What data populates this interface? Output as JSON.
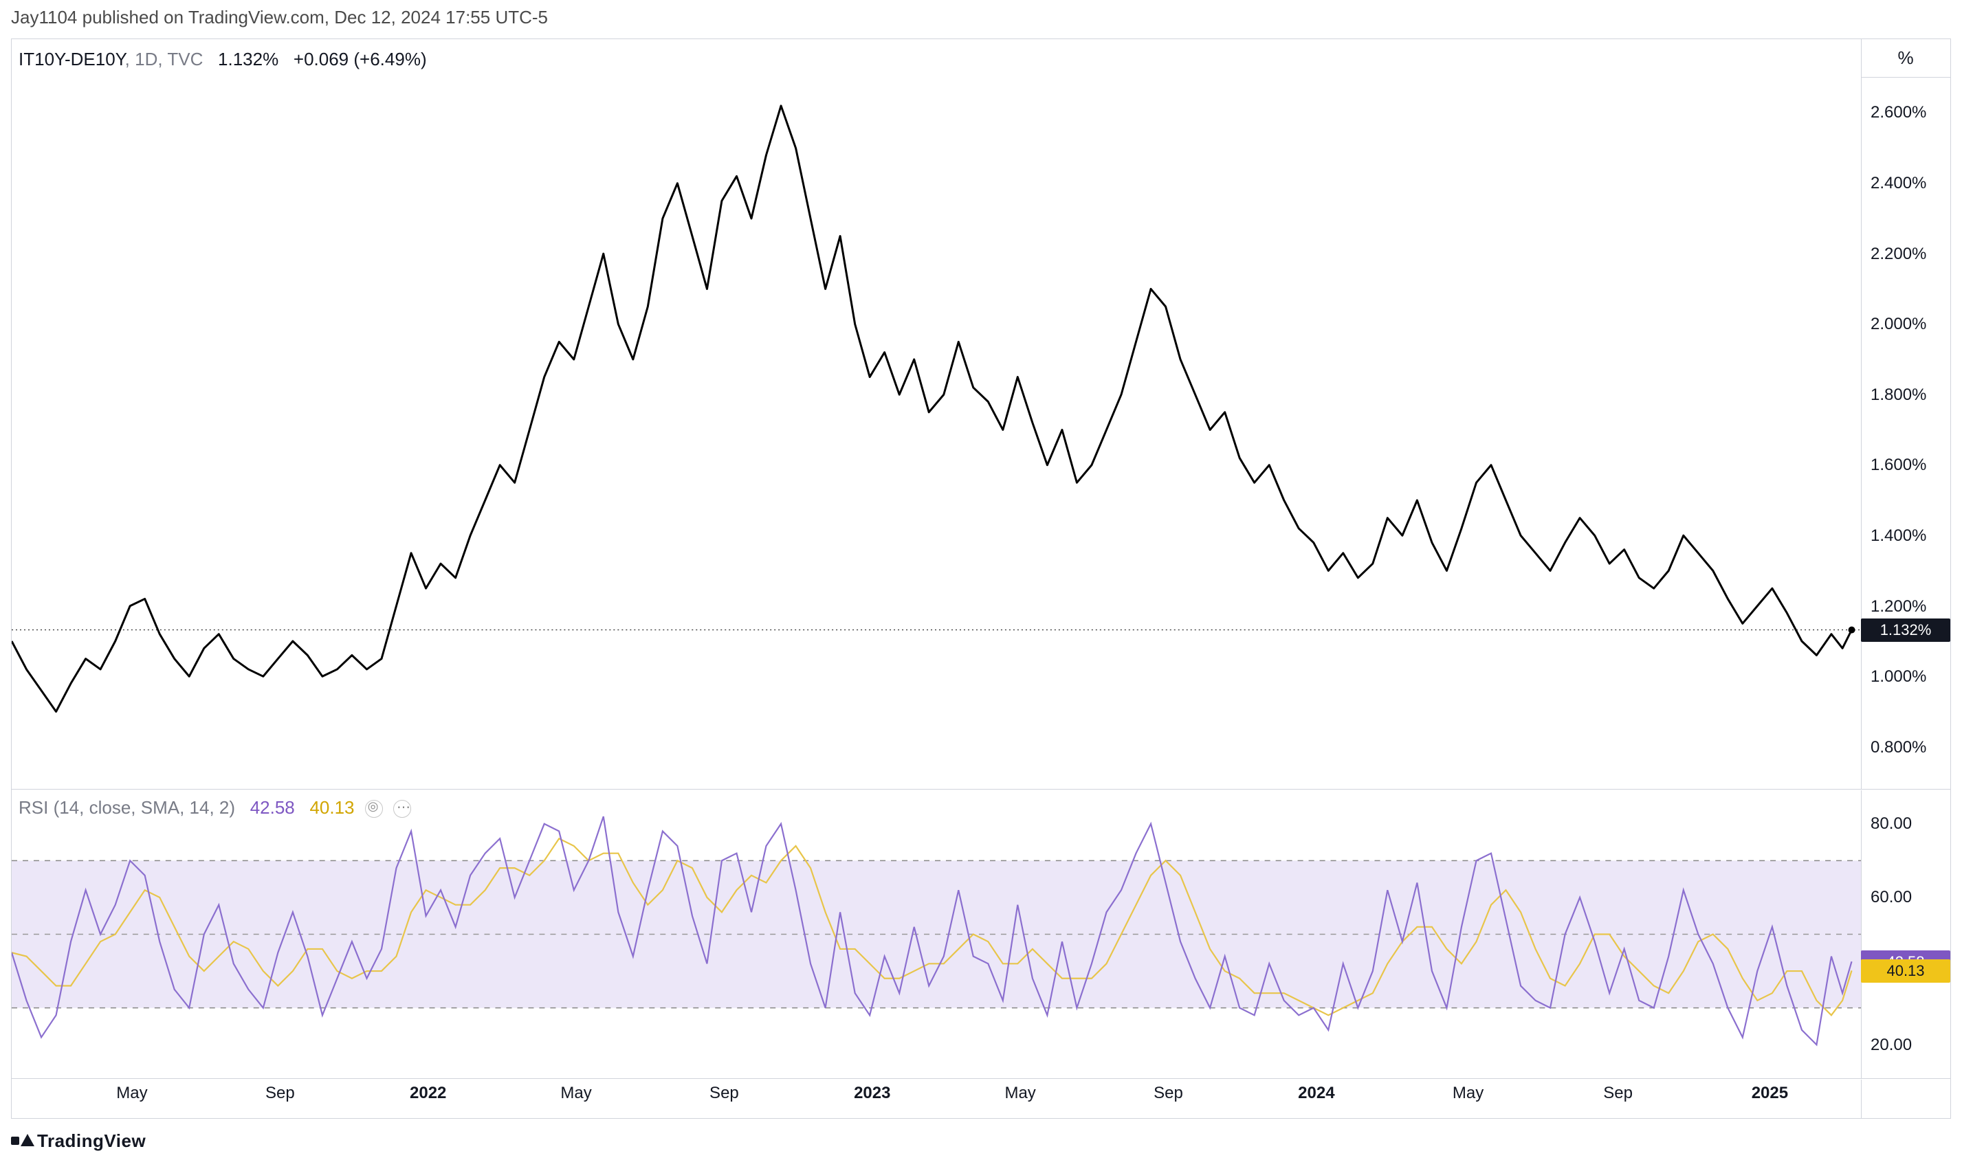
{
  "meta": {
    "publisher": "Jay1104",
    "published_text": "published on TradingView.com,",
    "timestamp": "Dec 12, 2024 17:55 UTC-5",
    "footer_brand": "TradingView"
  },
  "main": {
    "symbol": "IT10Y-DE10Y",
    "interval": "1D",
    "source": "TVC",
    "last": "1.132%",
    "change": "+0.069",
    "change_pct": "(+6.49%)",
    "unit": "%",
    "yaxis": {
      "min": 0.7,
      "max": 2.7,
      "ticks": [
        0.8,
        1.0,
        1.2,
        1.4,
        1.6,
        1.8,
        2.0,
        2.2,
        2.4,
        2.6
      ],
      "tick_labels": [
        "0.800%",
        "1.000%",
        "1.200%",
        "1.400%",
        "1.600%",
        "1.800%",
        "2.000%",
        "2.200%",
        "2.400%",
        "2.600%"
      ]
    },
    "marker": {
      "value": 1.132,
      "label": "1.132%",
      "bg": "#131722",
      "fg": "#ffffff"
    },
    "line_color": "#000000",
    "line_width": 3,
    "series_t": [
      0,
      0.008,
      0.016,
      0.024,
      0.032,
      0.04,
      0.048,
      0.056,
      0.064,
      0.072,
      0.08,
      0.088,
      0.096,
      0.104,
      0.112,
      0.12,
      0.128,
      0.136,
      0.144,
      0.152,
      0.16,
      0.168,
      0.176,
      0.184,
      0.192,
      0.2,
      0.208,
      0.216,
      0.224,
      0.232,
      0.24,
      0.248,
      0.256,
      0.264,
      0.272,
      0.28,
      0.288,
      0.296,
      0.304,
      0.312,
      0.32,
      0.328,
      0.336,
      0.344,
      0.352,
      0.36,
      0.368,
      0.376,
      0.384,
      0.392,
      0.4,
      0.408,
      0.416,
      0.424,
      0.432,
      0.44,
      0.448,
      0.456,
      0.464,
      0.472,
      0.48,
      0.488,
      0.496,
      0.504,
      0.512,
      0.52,
      0.528,
      0.536,
      0.544,
      0.552,
      0.56,
      0.568,
      0.576,
      0.584,
      0.592,
      0.6,
      0.608,
      0.616,
      0.624,
      0.632,
      0.64,
      0.648,
      0.656,
      0.664,
      0.672,
      0.68,
      0.688,
      0.696,
      0.704,
      0.712,
      0.72,
      0.728,
      0.736,
      0.744,
      0.752,
      0.76,
      0.768,
      0.776,
      0.784,
      0.792,
      0.8,
      0.808,
      0.816,
      0.824,
      0.832,
      0.84,
      0.848,
      0.856,
      0.864,
      0.872,
      0.88,
      0.888,
      0.896,
      0.904,
      0.912,
      0.92,
      0.928,
      0.936,
      0.944,
      0.952,
      0.96,
      0.968,
      0.976,
      0.984,
      0.99,
      0.995
    ],
    "series_v": [
      1.1,
      1.02,
      0.96,
      0.9,
      0.98,
      1.05,
      1.02,
      1.1,
      1.2,
      1.22,
      1.12,
      1.05,
      1.0,
      1.08,
      1.12,
      1.05,
      1.02,
      1.0,
      1.05,
      1.1,
      1.06,
      1.0,
      1.02,
      1.06,
      1.02,
      1.05,
      1.2,
      1.35,
      1.25,
      1.32,
      1.28,
      1.4,
      1.5,
      1.6,
      1.55,
      1.7,
      1.85,
      1.95,
      1.9,
      2.05,
      2.2,
      2.0,
      1.9,
      2.05,
      2.3,
      2.4,
      2.25,
      2.1,
      2.35,
      2.42,
      2.3,
      2.48,
      2.62,
      2.5,
      2.3,
      2.1,
      2.25,
      2.0,
      1.85,
      1.92,
      1.8,
      1.9,
      1.75,
      1.8,
      1.95,
      1.82,
      1.78,
      1.7,
      1.85,
      1.72,
      1.6,
      1.7,
      1.55,
      1.6,
      1.7,
      1.8,
      1.95,
      2.1,
      2.05,
      1.9,
      1.8,
      1.7,
      1.75,
      1.62,
      1.55,
      1.6,
      1.5,
      1.42,
      1.38,
      1.3,
      1.35,
      1.28,
      1.32,
      1.45,
      1.4,
      1.5,
      1.38,
      1.3,
      1.42,
      1.55,
      1.6,
      1.5,
      1.4,
      1.35,
      1.3,
      1.38,
      1.45,
      1.4,
      1.32,
      1.36,
      1.28,
      1.25,
      1.3,
      1.4,
      1.35,
      1.3,
      1.22,
      1.15,
      1.2,
      1.25,
      1.18,
      1.1,
      1.06,
      1.12,
      1.08,
      1.132
    ]
  },
  "rsi": {
    "title": "RSI (14, close, SMA, 14, 2)",
    "rsi_value": "42.58",
    "sma_value": "40.13",
    "yaxis": {
      "min": 12,
      "max": 88,
      "ticks": [
        20,
        40,
        60,
        80
      ],
      "tick_labels": [
        "20.00",
        "40.00",
        "60.00",
        "80.00"
      ]
    },
    "band": {
      "upper": 70,
      "lower": 30,
      "mid": 50,
      "fill": "#ece7f8"
    },
    "markers": [
      {
        "value": 42.58,
        "label": "42.58",
        "bg": "#7e57c2",
        "fg": "#ffffff"
      },
      {
        "value": 40.13,
        "label": "40.13",
        "bg": "#f0c419",
        "fg": "#131722"
      }
    ],
    "rsi_color": "#8b6fcf",
    "sma_color": "#e8c54a",
    "line_width": 2.2,
    "series_t": [
      0,
      0.008,
      0.016,
      0.024,
      0.032,
      0.04,
      0.048,
      0.056,
      0.064,
      0.072,
      0.08,
      0.088,
      0.096,
      0.104,
      0.112,
      0.12,
      0.128,
      0.136,
      0.144,
      0.152,
      0.16,
      0.168,
      0.176,
      0.184,
      0.192,
      0.2,
      0.208,
      0.216,
      0.224,
      0.232,
      0.24,
      0.248,
      0.256,
      0.264,
      0.272,
      0.28,
      0.288,
      0.296,
      0.304,
      0.312,
      0.32,
      0.328,
      0.336,
      0.344,
      0.352,
      0.36,
      0.368,
      0.376,
      0.384,
      0.392,
      0.4,
      0.408,
      0.416,
      0.424,
      0.432,
      0.44,
      0.448,
      0.456,
      0.464,
      0.472,
      0.48,
      0.488,
      0.496,
      0.504,
      0.512,
      0.52,
      0.528,
      0.536,
      0.544,
      0.552,
      0.56,
      0.568,
      0.576,
      0.584,
      0.592,
      0.6,
      0.608,
      0.616,
      0.624,
      0.632,
      0.64,
      0.648,
      0.656,
      0.664,
      0.672,
      0.68,
      0.688,
      0.696,
      0.704,
      0.712,
      0.72,
      0.728,
      0.736,
      0.744,
      0.752,
      0.76,
      0.768,
      0.776,
      0.784,
      0.792,
      0.8,
      0.808,
      0.816,
      0.824,
      0.832,
      0.84,
      0.848,
      0.856,
      0.864,
      0.872,
      0.88,
      0.888,
      0.896,
      0.904,
      0.912,
      0.92,
      0.928,
      0.936,
      0.944,
      0.952,
      0.96,
      0.968,
      0.976,
      0.984,
      0.99,
      0.995
    ],
    "rsi_v": [
      45,
      32,
      22,
      28,
      48,
      62,
      50,
      58,
      70,
      66,
      48,
      35,
      30,
      50,
      58,
      42,
      35,
      30,
      45,
      56,
      44,
      28,
      38,
      48,
      38,
      46,
      68,
      78,
      55,
      62,
      52,
      66,
      72,
      76,
      60,
      70,
      80,
      78,
      62,
      70,
      82,
      56,
      44,
      62,
      78,
      74,
      55,
      42,
      70,
      72,
      56,
      74,
      80,
      62,
      42,
      30,
      56,
      34,
      28,
      44,
      34,
      52,
      36,
      44,
      62,
      44,
      42,
      32,
      58,
      38,
      28,
      48,
      30,
      42,
      56,
      62,
      72,
      80,
      64,
      48,
      38,
      30,
      44,
      30,
      28,
      42,
      32,
      28,
      30,
      24,
      42,
      30,
      40,
      62,
      48,
      64,
      40,
      30,
      52,
      70,
      72,
      54,
      36,
      32,
      30,
      50,
      60,
      48,
      34,
      46,
      32,
      30,
      44,
      62,
      50,
      42,
      30,
      22,
      40,
      52,
      36,
      24,
      20,
      44,
      34,
      42.58
    ],
    "sma_v": [
      45,
      44,
      40,
      36,
      36,
      42,
      48,
      50,
      56,
      62,
      60,
      52,
      44,
      40,
      44,
      48,
      46,
      40,
      36,
      40,
      46,
      46,
      40,
      38,
      40,
      40,
      44,
      56,
      62,
      60,
      58,
      58,
      62,
      68,
      68,
      66,
      70,
      76,
      74,
      70,
      72,
      72,
      64,
      58,
      62,
      70,
      68,
      60,
      56,
      62,
      66,
      64,
      70,
      74,
      68,
      56,
      46,
      46,
      42,
      38,
      38,
      40,
      42,
      42,
      46,
      50,
      48,
      42,
      42,
      46,
      42,
      38,
      38,
      38,
      42,
      50,
      58,
      66,
      70,
      66,
      56,
      46,
      40,
      38,
      34,
      34,
      34,
      32,
      30,
      28,
      30,
      32,
      34,
      42,
      48,
      52,
      52,
      46,
      42,
      48,
      58,
      62,
      56,
      46,
      38,
      36,
      42,
      50,
      50,
      44,
      40,
      36,
      34,
      40,
      48,
      50,
      46,
      38,
      32,
      34,
      40,
      40,
      32,
      28,
      32,
      40.13
    ]
  },
  "xaxis": {
    "ticks": [
      {
        "t": 0.065,
        "label": "May",
        "bold": false
      },
      {
        "t": 0.145,
        "label": "Sep",
        "bold": false
      },
      {
        "t": 0.225,
        "label": "2022",
        "bold": true
      },
      {
        "t": 0.305,
        "label": "May",
        "bold": false
      },
      {
        "t": 0.385,
        "label": "Sep",
        "bold": false
      },
      {
        "t": 0.465,
        "label": "2023",
        "bold": true
      },
      {
        "t": 0.545,
        "label": "May",
        "bold": false
      },
      {
        "t": 0.625,
        "label": "Sep",
        "bold": false
      },
      {
        "t": 0.705,
        "label": "2024",
        "bold": true
      },
      {
        "t": 0.787,
        "label": "May",
        "bold": false
      },
      {
        "t": 0.868,
        "label": "Sep",
        "bold": false
      },
      {
        "t": 0.95,
        "label": "2025",
        "bold": true
      },
      {
        "t": 1.03,
        "label": "May",
        "bold": false
      }
    ]
  },
  "colors": {
    "border": "#d1d4dc",
    "text": "#131722",
    "muted": "#787b86"
  }
}
